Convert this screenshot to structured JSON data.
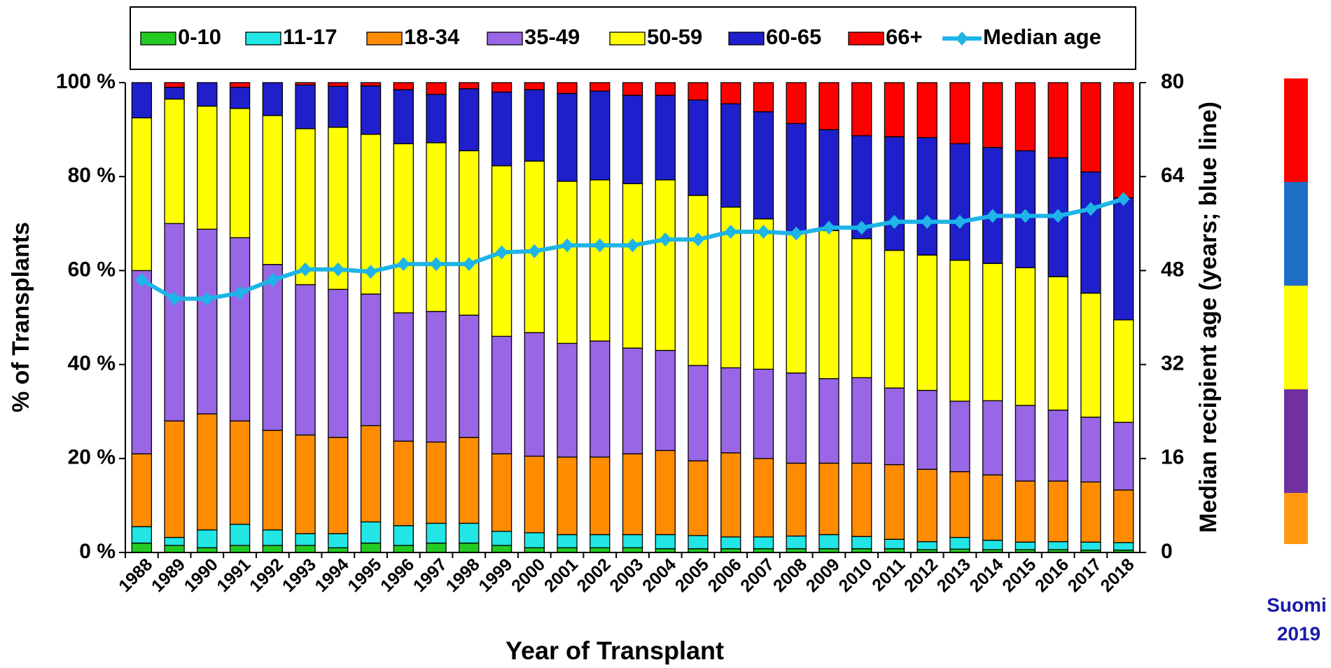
{
  "chart_data": {
    "type": "bar",
    "stacked": true,
    "x_label": "Year of Transplant",
    "y_label": "% of Transplants",
    "y2_label": "Median recipient  age (years; blue line)",
    "footer_text": [
      "Suomi",
      "2019"
    ],
    "categories": [
      "1988",
      "1989",
      "1990",
      "1991",
      "1992",
      "1993",
      "1994",
      "1995",
      "1996",
      "1997",
      "1998",
      "1999",
      "2000",
      "2001",
      "2002",
      "2003",
      "2004",
      "2005",
      "2006",
      "2007",
      "2008",
      "2009",
      "2010",
      "2011",
      "2012",
      "2013",
      "2014",
      "2015",
      "2016",
      "2017",
      "2018"
    ],
    "series": [
      {
        "name": "0-10",
        "color": "#22cc22",
        "values": [
          2,
          1.5,
          1,
          1.5,
          1.5,
          1.5,
          1,
          2,
          1.5,
          2,
          2,
          1.5,
          1,
          1,
          1,
          1,
          0.8,
          0.8,
          0.8,
          0.8,
          0.8,
          0.8,
          0.8,
          0.8,
          0.6,
          0.7,
          0.6,
          0.6,
          0.6,
          0.5,
          0.5
        ]
      },
      {
        "name": "11-17",
        "color": "#22e5e5",
        "values": [
          3.5,
          1.7,
          3.8,
          4.5,
          3.3,
          2.5,
          3,
          4.5,
          4.2,
          4.2,
          4.2,
          3,
          3.2,
          2.8,
          2.8,
          2.8,
          3,
          2.8,
          2.5,
          2.5,
          2.7,
          3,
          2.6,
          2,
          1.7,
          2.5,
          2,
          1.6,
          1.7,
          1.7,
          1.6
        ]
      },
      {
        "name": "18-34",
        "color": "#ff8c00",
        "values": [
          15.5,
          24.8,
          24.7,
          22,
          21.2,
          21,
          20.5,
          20.5,
          18,
          17.3,
          18.3,
          16.5,
          16.3,
          16.5,
          16.5,
          17.2,
          17.9,
          15.9,
          17.9,
          16.7,
          15.5,
          15.2,
          15.6,
          15.9,
          15.4,
          14,
          13.9,
          13,
          12.9,
          12.8,
          11.2
        ]
      },
      {
        "name": "35-49",
        "color": "#9966e6",
        "values": [
          39,
          42,
          39.3,
          39,
          35.3,
          32,
          31.5,
          28,
          27.3,
          27.8,
          26,
          25,
          26.3,
          24.2,
          24.7,
          22.5,
          21.3,
          20.3,
          18.1,
          19,
          19.2,
          18,
          18.2,
          16.3,
          16.8,
          15,
          15.8,
          16.1,
          15.1,
          13.8,
          14.4
        ]
      },
      {
        "name": "50-59",
        "color": "#ffff00",
        "values": [
          32.5,
          26.5,
          26.2,
          27.5,
          31.7,
          33.2,
          34.5,
          34,
          36,
          35.9,
          35,
          36.3,
          36.5,
          34.5,
          34.3,
          35,
          36.3,
          36.2,
          34.2,
          32,
          30,
          31.5,
          29.6,
          29.3,
          28.8,
          30,
          29.2,
          29.3,
          28.4,
          26.4,
          21.8
        ]
      },
      {
        "name": "60-65",
        "color": "#1f1fcc",
        "values": [
          7.5,
          2.5,
          5,
          4.5,
          7,
          9.3,
          8.7,
          10.3,
          11.5,
          10.3,
          13.2,
          15.7,
          15.2,
          18.7,
          18.9,
          18.8,
          18,
          20.3,
          22,
          22.8,
          23.1,
          21.5,
          21.9,
          24.2,
          25,
          24.8,
          24.7,
          24.9,
          25.3,
          25.8,
          26
        ]
      },
      {
        "name": "66+",
        "color": "#ff0000",
        "values": [
          0,
          1,
          0,
          1,
          0,
          0.5,
          0.8,
          0.7,
          1.5,
          2.5,
          1.3,
          2,
          1.5,
          2.3,
          1.8,
          2.7,
          2.7,
          3.7,
          4.5,
          6.2,
          8.7,
          10,
          11.3,
          11.5,
          11.7,
          13,
          13.8,
          14.5,
          16,
          19,
          24.5
        ]
      },
      {
        "name": "Median age",
        "color": "#1eb4e8",
        "axis": "y2",
        "values": [
          46.4,
          43.2,
          43.2,
          44.2,
          46.4,
          48.2,
          48.2,
          47.8,
          49.1,
          49.1,
          49.1,
          51.1,
          51.3,
          52.3,
          52.3,
          52.3,
          53.3,
          53.3,
          54.6,
          54.6,
          54.3,
          55.3,
          55.3,
          56.3,
          56.3,
          56.3,
          57.3,
          57.3,
          57.3,
          58.5,
          60.2
        ]
      }
    ],
    "ylim": [
      0,
      100
    ],
    "yticks": [
      {
        "value": 0,
        "label": "0 %"
      },
      {
        "value": 20,
        "label": "20 %"
      },
      {
        "value": 40,
        "label": "40 %"
      },
      {
        "value": 60,
        "label": "60 %"
      },
      {
        "value": 80,
        "label": "80 %"
      },
      {
        "value": 100,
        "label": "100 %"
      }
    ],
    "y2lim": [
      0,
      80
    ],
    "y2ticks": [
      0,
      16,
      32,
      48,
      64,
      80
    ],
    "grid": false,
    "legend": "top"
  }
}
